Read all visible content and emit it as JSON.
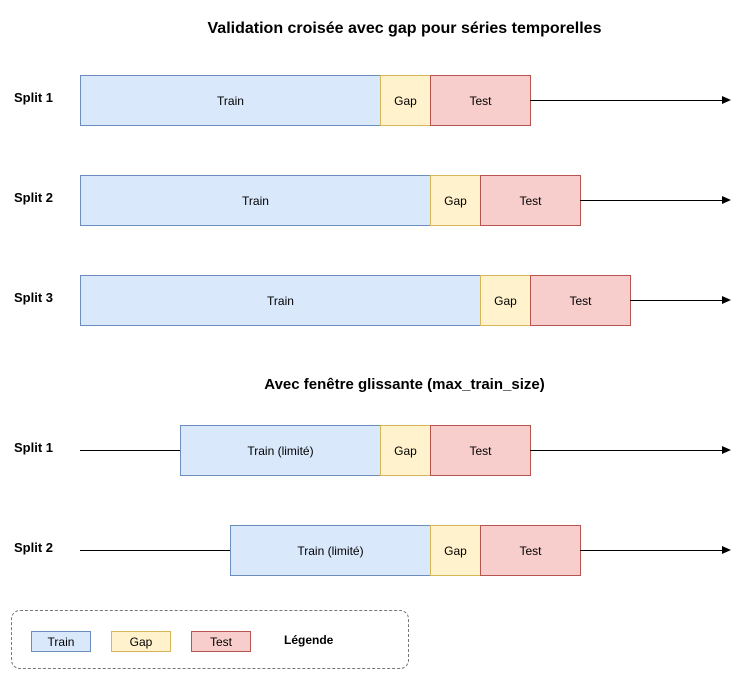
{
  "title": "Validation croisée avec gap pour séries temporelles",
  "subtitle": "Avec fenêtre glissante (max_train_size)",
  "standard_splits": [
    {
      "label": "Split 1",
      "train": "Train",
      "gap": "Gap",
      "test": "Test"
    },
    {
      "label": "Split 2",
      "train": "Train",
      "gap": "Gap",
      "test": "Test"
    },
    {
      "label": "Split 3",
      "train": "Train",
      "gap": "Gap",
      "test": "Test"
    }
  ],
  "sliding_splits": [
    {
      "label": "Split 1",
      "train": "Train (limité)",
      "gap": "Gap",
      "test": "Test"
    },
    {
      "label": "Split 2",
      "train": "Train (limité)",
      "gap": "Gap",
      "test": "Test"
    }
  ],
  "legend": {
    "train": "Train",
    "gap": "Gap",
    "test": "Test",
    "label": "Légende"
  },
  "colors": {
    "train_fill": "#dae8fc",
    "train_border": "#6c8ebf",
    "gap_fill": "#fff2cc",
    "gap_border": "#d6b656",
    "test_fill": "#f8cecc",
    "test_border": "#b85450"
  }
}
